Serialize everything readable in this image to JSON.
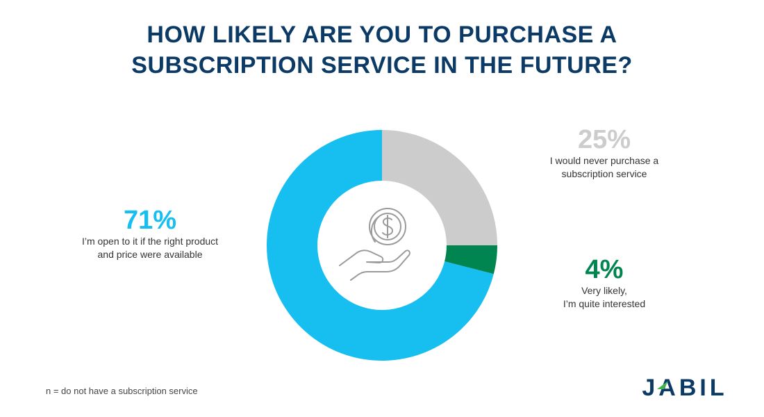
{
  "title": {
    "line1": "HOW LIKELY ARE YOU TO PURCHASE A",
    "line2": "SUBSCRIPTION SERVICE IN THE FUTURE?"
  },
  "chart_data": {
    "type": "pie",
    "variant": "donut",
    "title": "HOW LIKELY ARE YOU TO PURCHASE A SUBSCRIPTION SERVICE IN THE FUTURE?",
    "slices": [
      {
        "key": "never",
        "value": 25,
        "label": "25%",
        "description": [
          "I would never purchase a",
          "subscription service"
        ],
        "color": "#cccccc"
      },
      {
        "key": "likely",
        "value": 4,
        "label": "4%",
        "description": [
          "Very likely,",
          "I’m quite interested"
        ],
        "color": "#008450"
      },
      {
        "key": "open",
        "value": 71,
        "label": "71%",
        "description": [
          "I’m open to it if the right product",
          "and price were available"
        ],
        "color": "#17bef0"
      }
    ],
    "start_angle_deg": 0,
    "direction": "clockwise",
    "center_icon": "coin-on-hand-icon"
  },
  "labels": {
    "open": {
      "pct": "71%",
      "line1": "I’m open to it if the right product",
      "line2": "and price were available",
      "color": "#17bef0"
    },
    "never": {
      "pct": "25%",
      "line1": "I would never purchase a",
      "line2": "subscription service",
      "color": "#cccccc"
    },
    "likely": {
      "pct": "4%",
      "line1": "Very likely,",
      "line2": "I’m quite interested",
      "color": "#008450"
    }
  },
  "footnote": "n = do not have a subscription service",
  "logo": {
    "text": "JABIL",
    "color": "#0b3a66",
    "accent": "#3db54a"
  }
}
